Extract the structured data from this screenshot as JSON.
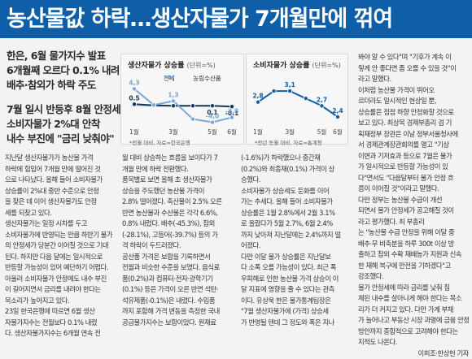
{
  "headline": "농산물값 하락…생산자물가 7개월만에 꺾여",
  "subheads": [
    "한은, 6월 물가지수 발표",
    "6개월째 오르다 0.1% 내려",
    "배추·참외가 하락 주도",
    "7월 일시 반등후 8월 안정세",
    "소비자물가 2%대 안착",
    "내수 부진에 \"금리 낮춰야\""
  ],
  "chart_left": {
    "title": "생산자물가 상승률",
    "unit": "(단위=%)",
    "legend": [
      "전체",
      "농림수산품"
    ],
    "source": "*전월 대비, 자료=한국은행",
    "chart_data": {
      "type": "line",
      "categories": [
        "1월",
        "3월",
        "5월",
        "6월"
      ],
      "series": [
        {
          "name": "전체",
          "x": [
            1,
            2,
            3,
            4,
            5,
            6
          ],
          "values": [
            0.5,
            0.2,
            0.1,
            0.1,
            0.1,
            -0.1
          ],
          "labels": [
            "0.5",
            "",
            "",
            "",
            "0,1",
            "-0,1"
          ]
        },
        {
          "name": "농림수산품",
          "x": [
            1,
            2,
            3,
            4,
            5,
            6
          ],
          "values": [
            4.3,
            0.3,
            1.3,
            -3.2,
            -4.0,
            -2.8
          ],
          "labels": [
            "4,3",
            "",
            "1,3",
            "",
            "-4,0",
            "-2,8"
          ]
        }
      ],
      "colors": {
        "전체": "#14375d",
        "농림수산품": "#7aa6d8"
      }
    }
  },
  "chart_right": {
    "title": "소비자물가 상승률",
    "unit": "(단위=%)",
    "source": "*전년 동월 대비, 자료=통계청",
    "chart_data": {
      "type": "line",
      "categories": [
        "1월",
        "3월",
        "5월",
        "6월"
      ],
      "series": [
        {
          "name": "",
          "x": [
            1,
            2,
            3,
            4,
            5,
            6
          ],
          "values": [
            2.8,
            3.1,
            3.1,
            2.9,
            2.7,
            2.4
          ],
          "labels": [
            "2,8",
            "",
            "3,1",
            "",
            "2,7",
            "2,4"
          ]
        }
      ],
      "colors": {
        "line": "#0f5ea8"
      }
    }
  },
  "col1": [
    "지난달 생산자물가가 농산물 가격",
    "하락에 힘입어 7개월 만에 떨어진 것",
    "으로 나타났다. 올해 들어 소비자물가",
    "상승률이 2%대 중반 수준으로 안정",
    "을 찾은 데 이어 생산자물가도 안정",
    "세를 되찾고 있다.",
    "  생산자물가는 일정 시차를 두고",
    "소비자물가에 반영되는 만큼 하반기 물가",
    "의 안정세가 당분간 이어질 것으로 기대",
    "된다. 하지만 다음 달에는 일시적으로",
    "반등할 가능성이 있어 예단하기 어렵다.",
    "아울러 소비자물가 안정에도 내수 부진",
    "이 길어지면서 금리를 내려야 한다는",
    "목소리가 높아지고 있다.",
    "  23일 한국은행에 따르면 6월 생산",
    "자물가지수는 전월보다 0.1% 내렸",
    "다. 생산자물가지수는 6개월 연속 전"
  ],
  "col2": [
    "월 대비 상승하는 흐름을 보이다가 7",
    "개월 만에 하락 전환했다.",
    "  품목별로 보면 올해 초 생산자물가",
    "상승을 주도했던 농산물 가격이",
    "2.8% 떨어졌다. 축산물이 2.5% 오른",
    "반면 농산물과 수산물은 각각 6.6%,",
    "0.8% 내렸다. 배추(-45.3%), 참외",
    "(-28.1%), 고등어(-39.7%) 등의 가",
    "격 하락이 두드러졌다.",
    "  공산품 가격은 보합을 기록하면서",
    "전월과 비슷한 수준을 보였다. 음식료",
    "품(0.2%)과 컴퓨터·전자·광학기기",
    "(0.1%) 등은 가격이 오른 반면 석탄·",
    "석유제품(-0.1%)은 내렸다. 수입품",
    "까지 포함해 가격 변동을 측정한 국내",
    "공급물가지수는 보합이었다. 원재료"
  ],
  "col3": [
    "(-1.6%)가 하락했으나 중간재",
    "(0.2%)와 최종재(0.1%) 가격이 상",
    "승했다.",
    "  소비자물가 상승세도 둔화를 이어",
    "가는 추세다. 올해 들어 소비자물가",
    "상승률은 1월 2.8%에서 2월 3.1%",
    "로 올랐다가 5월 2.7%, 6월 2.4%",
    "까지 낮아져 지난달에는 2.4%까지 떨",
    "어졌다.",
    "  다만 이달 물가 상승률은 지난달보",
    "다 소폭 오를 가능성이 있다. 최근 폭",
    "우피해로 인한 농산물 가격 상승이 이",
    "달 지표에 영향을 줄 수 있다는 관측",
    "이다. 유상욱 한은 물가통계팀장은",
    "\"7월 생산자물가에 (가격) 상승세",
    "가 반영될 텐데 그 정도와 폭은 지나"
  ],
  "col4": [
    "봐야 알 수 있다\"며 \"기후가 계속 이",
    "렇게 안 좋다면 좀 오를 수 있을 것\"이",
    "라고 말했다.",
    "  이처럼 농산물 가격이 뛰어오",
    "르더라도 일시적인 현상일 뿐,",
    "상승률은 점점 하향 안정화할 것으로",
    "보고 있다. 최상목 경제부총리 겸 기",
    "획재정부 장관은 이날 정부서울청사에",
    "서 경제관계장관회의를 열고 \"기상",
    "이변과 기저효과 등으로 7월은 물가",
    "가 일시적으로 반등할 가능성이 있",
    "다\"면서도 \"다음달부터 물가 안정 흐",
    "름이 이어질 것\"이라고 말했다.",
    "  다만 정부는 농산물 수급이 개선",
    "되면서 물가 안정세가 공고해질 것이",
    "라고 평가했다. 최 부총리",
    "는 \"농산물 수급 안정을 위해 이달 중",
    "배추·무 비축분을 하루 300t 이상 방",
    "출하고 참외 수확 재배농가 지원과 신속",
    "한 재해 복구에 만전을 기하겠다\"고",
    "강조했다.",
    "  물가 안정세에 따라 금리를 낮춰 침",
    "체된 내수를 살아나게 해야 한다는 목소",
    "리가 더 커지고 있다. 다만 가계 부채",
    "가 늘어나고 부동산 시장 과열에 금융 안정",
    "방안까지 종합적으로 고려해야 한다는",
    "지적도 나온다."
  ],
  "byline": "이희조·한상헌 기자"
}
